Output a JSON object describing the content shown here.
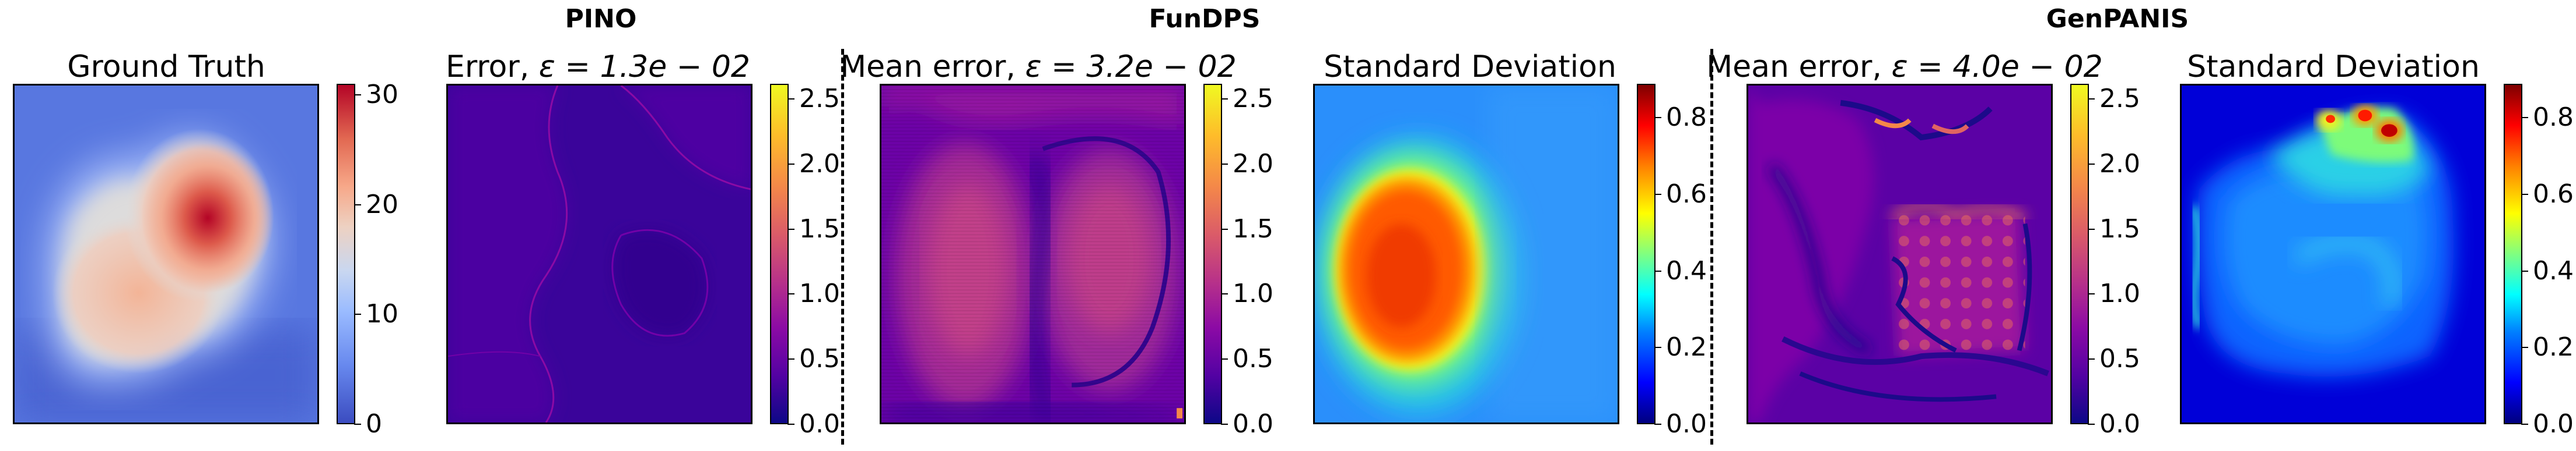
{
  "groups": {
    "pino": "PINO",
    "fundps": "FunDPS",
    "genpanis": "GenPANIS"
  },
  "panels": {
    "p1": {
      "title": "Ground Truth"
    },
    "p2": {
      "title_prefix": "Error, ",
      "title_math": "ε = 1.3e − 02"
    },
    "p3": {
      "title_prefix": "Mean error, ",
      "title_math": "ε = 3.2e − 02"
    },
    "p4": {
      "title": "Standard Deviation"
    },
    "p5": {
      "title_prefix": "Mean error, ",
      "title_math": "ε = 4.0e − 02"
    },
    "p6": {
      "title": "Standard Deviation"
    }
  },
  "colorbars": {
    "gt": {
      "colormap": "coolwarm",
      "ticks": [
        "30",
        "20",
        "10",
        "0"
      ],
      "range": [
        0,
        31
      ]
    },
    "err": {
      "colormap": "plasma",
      "ticks": [
        "2.5",
        "2.0",
        "1.5",
        "1.0",
        "0.5",
        "0.0"
      ],
      "range": [
        0,
        2.6
      ]
    },
    "std": {
      "colormap": "jet",
      "ticks": [
        "0.8",
        "0.6",
        "0.4",
        "0.2",
        "0.0"
      ],
      "range": [
        0,
        0.88
      ]
    }
  },
  "colors": {
    "coolwarm_low": "#3b4cc0",
    "coolwarm_mid": "#dddcdc",
    "coolwarm_high": "#b40426",
    "plasma_low": "#0d0887",
    "plasma_mid": "#cc4778",
    "plasma_high": "#f0f921",
    "jet_low": "#00007f",
    "jet_high": "#7f0000"
  }
}
